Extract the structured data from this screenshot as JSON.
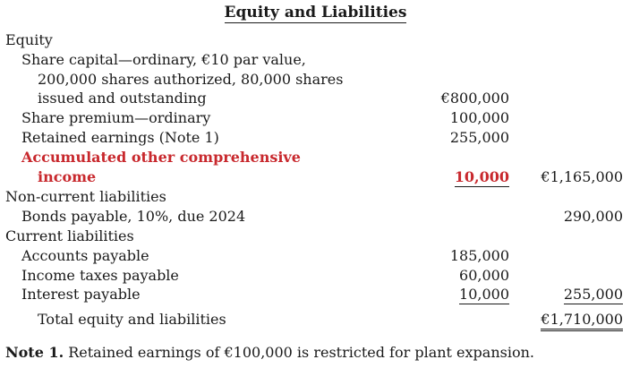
{
  "title": "Equity and Liabilities",
  "rows": [
    {
      "label": "Equity"
    },
    {
      "label": "Share capital—ordinary, €10 par value,"
    },
    {
      "label": "200,000 shares authorized, 80,000 shares"
    },
    {
      "label": "issued and outstanding",
      "amount": "€800,000"
    },
    {
      "label": "Share premium—ordinary",
      "amount": "100,000"
    },
    {
      "label": "Retained earnings (Note 1)",
      "amount": "255,000"
    },
    {
      "label": "Accumulated other comprehensive"
    },
    {
      "label": "income",
      "amount": "10,000",
      "total": "€1,165,000"
    },
    {
      "label": "Non-current liabilities"
    },
    {
      "label": "Bonds payable, 10%, due 2024",
      "total": "290,000"
    },
    {
      "label": "Current liabilities"
    },
    {
      "label": "Accounts payable",
      "amount": "185,000"
    },
    {
      "label": "Income taxes payable",
      "amount": "60,000"
    },
    {
      "label": "Interest payable",
      "amount": "10,000",
      "total": "255,000"
    },
    {
      "label": "Total equity and liabilities",
      "total": "€1,710,000"
    }
  ],
  "note": {
    "lead": "Note 1.",
    "text": " Retained earnings of €100,000 is restricted for plant expansion."
  },
  "colors": {
    "highlight": "#c8282d",
    "text": "#1a1a1a"
  }
}
